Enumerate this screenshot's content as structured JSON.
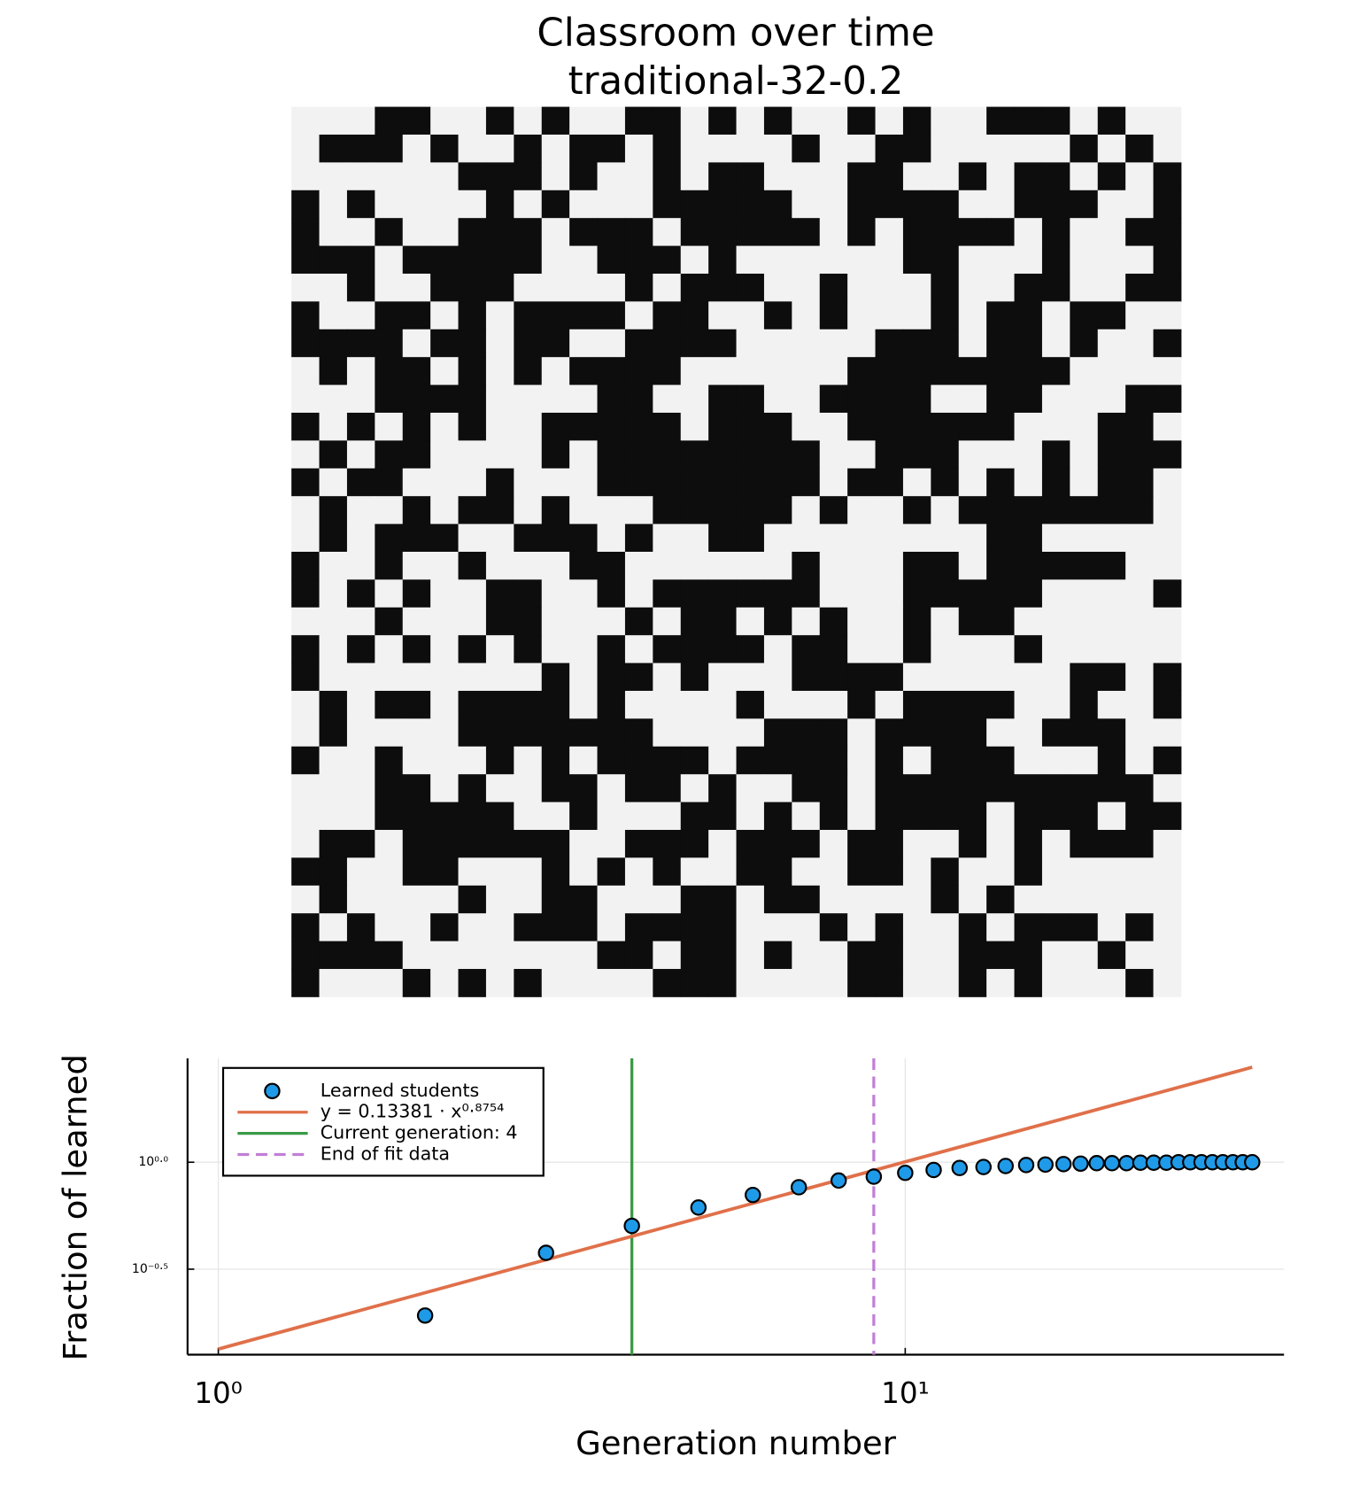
{
  "chart_data": [
    {
      "type": "heatmap",
      "title": "Classroom over time",
      "subtitle": "traditional-32-0.2",
      "colors": [
        "#f2f2f2",
        "#0d0d0d"
      ],
      "z": [
        [
          0,
          0,
          0,
          1,
          1,
          0,
          0,
          1,
          0,
          1,
          0,
          0,
          1,
          1,
          0,
          1,
          0,
          1,
          0,
          0,
          1,
          0,
          1,
          0,
          0,
          1,
          1,
          1,
          0,
          1,
          0,
          0
        ],
        [
          0,
          1,
          1,
          1,
          0,
          1,
          0,
          0,
          1,
          0,
          1,
          1,
          0,
          1,
          0,
          0,
          0,
          0,
          1,
          0,
          0,
          1,
          1,
          0,
          0,
          0,
          0,
          0,
          1,
          0,
          1,
          0
        ],
        [
          0,
          0,
          0,
          0,
          0,
          0,
          1,
          1,
          1,
          0,
          1,
          0,
          0,
          1,
          0,
          1,
          1,
          0,
          0,
          0,
          1,
          1,
          0,
          0,
          1,
          0,
          1,
          1,
          0,
          1,
          0,
          1
        ],
        [
          1,
          0,
          1,
          0,
          0,
          0,
          0,
          1,
          0,
          1,
          0,
          0,
          0,
          1,
          1,
          1,
          1,
          1,
          0,
          0,
          1,
          1,
          1,
          1,
          0,
          0,
          1,
          1,
          1,
          0,
          0,
          1
        ],
        [
          1,
          0,
          0,
          1,
          0,
          0,
          1,
          1,
          1,
          0,
          1,
          1,
          1,
          0,
          1,
          1,
          1,
          1,
          1,
          0,
          1,
          0,
          1,
          1,
          1,
          1,
          0,
          1,
          0,
          0,
          1,
          1
        ],
        [
          1,
          1,
          1,
          0,
          1,
          1,
          1,
          1,
          1,
          0,
          0,
          1,
          1,
          1,
          0,
          1,
          0,
          0,
          0,
          0,
          0,
          0,
          1,
          1,
          0,
          0,
          0,
          1,
          0,
          0,
          0,
          1
        ],
        [
          0,
          0,
          1,
          0,
          0,
          1,
          1,
          1,
          0,
          0,
          0,
          0,
          1,
          0,
          1,
          1,
          1,
          0,
          0,
          1,
          0,
          0,
          0,
          1,
          0,
          0,
          1,
          1,
          0,
          0,
          1,
          1
        ],
        [
          1,
          0,
          0,
          1,
          1,
          0,
          1,
          0,
          1,
          1,
          1,
          1,
          0,
          1,
          1,
          0,
          0,
          1,
          0,
          1,
          0,
          0,
          0,
          1,
          0,
          1,
          1,
          0,
          1,
          1,
          0,
          0
        ],
        [
          1,
          1,
          1,
          1,
          0,
          1,
          1,
          0,
          1,
          1,
          0,
          0,
          1,
          1,
          1,
          1,
          0,
          0,
          0,
          0,
          0,
          1,
          1,
          1,
          0,
          1,
          1,
          0,
          1,
          0,
          0,
          1
        ],
        [
          0,
          1,
          0,
          1,
          1,
          0,
          1,
          0,
          1,
          0,
          1,
          1,
          1,
          1,
          0,
          0,
          0,
          0,
          0,
          0,
          1,
          1,
          1,
          1,
          1,
          1,
          1,
          1,
          0,
          0,
          0,
          0
        ],
        [
          0,
          0,
          0,
          1,
          1,
          1,
          1,
          0,
          0,
          0,
          0,
          1,
          1,
          0,
          0,
          1,
          1,
          0,
          0,
          1,
          1,
          1,
          1,
          0,
          0,
          1,
          1,
          0,
          0,
          0,
          1,
          1
        ],
        [
          1,
          0,
          1,
          0,
          1,
          0,
          1,
          0,
          0,
          1,
          1,
          1,
          1,
          1,
          0,
          1,
          1,
          1,
          0,
          0,
          1,
          1,
          1,
          1,
          1,
          1,
          0,
          0,
          0,
          1,
          1,
          0
        ],
        [
          0,
          1,
          0,
          1,
          1,
          0,
          0,
          0,
          0,
          1,
          0,
          1,
          1,
          1,
          1,
          1,
          1,
          1,
          1,
          0,
          0,
          1,
          1,
          1,
          0,
          0,
          0,
          1,
          0,
          1,
          1,
          1
        ],
        [
          1,
          0,
          1,
          1,
          0,
          0,
          0,
          1,
          0,
          0,
          0,
          1,
          1,
          1,
          1,
          1,
          1,
          1,
          1,
          0,
          1,
          1,
          0,
          1,
          0,
          1,
          0,
          1,
          0,
          1,
          1,
          0
        ],
        [
          0,
          1,
          0,
          0,
          1,
          0,
          1,
          1,
          0,
          1,
          0,
          0,
          0,
          1,
          1,
          1,
          1,
          1,
          0,
          1,
          0,
          0,
          1,
          0,
          1,
          1,
          1,
          1,
          1,
          1,
          1,
          0
        ],
        [
          0,
          1,
          0,
          1,
          1,
          1,
          0,
          0,
          1,
          1,
          1,
          0,
          1,
          0,
          0,
          1,
          1,
          0,
          0,
          0,
          0,
          0,
          0,
          0,
          0,
          1,
          1,
          0,
          0,
          0,
          0,
          0
        ],
        [
          1,
          0,
          0,
          1,
          0,
          0,
          1,
          0,
          0,
          0,
          1,
          1,
          0,
          0,
          0,
          0,
          0,
          0,
          1,
          0,
          0,
          0,
          1,
          1,
          0,
          1,
          1,
          1,
          1,
          1,
          0,
          0
        ],
        [
          1,
          0,
          1,
          0,
          1,
          0,
          0,
          1,
          1,
          0,
          0,
          1,
          0,
          1,
          1,
          1,
          1,
          1,
          1,
          0,
          0,
          0,
          1,
          1,
          1,
          1,
          1,
          0,
          0,
          0,
          0,
          1
        ],
        [
          0,
          0,
          0,
          1,
          0,
          0,
          0,
          1,
          1,
          0,
          0,
          0,
          1,
          0,
          1,
          1,
          0,
          1,
          0,
          1,
          0,
          0,
          1,
          0,
          1,
          1,
          0,
          0,
          0,
          0,
          0,
          0
        ],
        [
          1,
          0,
          1,
          0,
          1,
          0,
          1,
          0,
          1,
          0,
          0,
          1,
          0,
          1,
          1,
          1,
          1,
          0,
          1,
          1,
          0,
          0,
          1,
          0,
          0,
          0,
          1,
          0,
          0,
          0,
          0,
          0
        ],
        [
          1,
          0,
          0,
          0,
          0,
          0,
          0,
          0,
          0,
          1,
          0,
          1,
          1,
          0,
          1,
          0,
          0,
          0,
          1,
          1,
          1,
          1,
          0,
          0,
          0,
          0,
          0,
          0,
          1,
          1,
          0,
          1
        ],
        [
          0,
          1,
          0,
          1,
          1,
          0,
          1,
          1,
          1,
          1,
          0,
          1,
          0,
          0,
          0,
          0,
          1,
          0,
          0,
          0,
          1,
          0,
          1,
          1,
          1,
          1,
          0,
          0,
          1,
          0,
          0,
          1
        ],
        [
          0,
          1,
          0,
          0,
          0,
          0,
          1,
          1,
          1,
          1,
          1,
          1,
          1,
          0,
          0,
          0,
          0,
          1,
          1,
          1,
          0,
          1,
          1,
          1,
          1,
          0,
          0,
          1,
          1,
          1,
          0,
          0
        ],
        [
          1,
          0,
          0,
          1,
          0,
          0,
          0,
          1,
          0,
          1,
          0,
          1,
          1,
          1,
          1,
          0,
          1,
          1,
          1,
          1,
          0,
          1,
          0,
          1,
          1,
          1,
          0,
          0,
          0,
          1,
          0,
          1
        ],
        [
          0,
          0,
          0,
          1,
          1,
          0,
          1,
          0,
          0,
          1,
          1,
          0,
          1,
          1,
          0,
          1,
          0,
          0,
          1,
          1,
          0,
          1,
          1,
          1,
          1,
          1,
          1,
          1,
          1,
          1,
          1,
          0
        ],
        [
          0,
          0,
          0,
          1,
          1,
          1,
          1,
          1,
          0,
          0,
          1,
          0,
          0,
          0,
          1,
          1,
          0,
          1,
          0,
          1,
          0,
          1,
          1,
          1,
          1,
          0,
          1,
          1,
          1,
          0,
          1,
          1
        ],
        [
          0,
          1,
          1,
          0,
          1,
          1,
          1,
          1,
          1,
          1,
          0,
          0,
          1,
          1,
          1,
          0,
          1,
          1,
          1,
          0,
          1,
          1,
          0,
          0,
          1,
          0,
          1,
          0,
          1,
          1,
          1,
          0
        ],
        [
          1,
          1,
          0,
          0,
          1,
          1,
          0,
          0,
          0,
          1,
          0,
          1,
          0,
          1,
          0,
          0,
          1,
          1,
          0,
          0,
          1,
          1,
          0,
          1,
          0,
          0,
          1,
          0,
          0,
          0,
          0,
          0
        ],
        [
          0,
          1,
          0,
          0,
          0,
          0,
          1,
          0,
          0,
          1,
          1,
          0,
          0,
          0,
          1,
          1,
          0,
          1,
          1,
          0,
          0,
          0,
          0,
          1,
          0,
          1,
          0,
          0,
          0,
          0,
          0,
          0
        ],
        [
          1,
          0,
          1,
          0,
          0,
          1,
          0,
          0,
          1,
          1,
          1,
          0,
          1,
          1,
          1,
          1,
          0,
          0,
          0,
          1,
          0,
          1,
          0,
          0,
          1,
          0,
          1,
          1,
          1,
          0,
          1,
          0
        ],
        [
          1,
          1,
          1,
          1,
          0,
          0,
          0,
          0,
          0,
          0,
          0,
          1,
          1,
          0,
          1,
          1,
          0,
          1,
          0,
          0,
          1,
          1,
          0,
          0,
          1,
          1,
          1,
          0,
          0,
          1,
          0,
          0
        ],
        [
          1,
          0,
          0,
          0,
          1,
          0,
          1,
          0,
          1,
          0,
          0,
          0,
          0,
          1,
          1,
          1,
          0,
          0,
          0,
          0,
          1,
          1,
          0,
          0,
          1,
          0,
          1,
          0,
          0,
          0,
          1,
          0
        ]
      ]
    },
    {
      "type": "scatter",
      "xlabel": "Generation number",
      "ylabel": "Fraction of learned",
      "xscale": "log",
      "yscale": "log",
      "xlim": [
        0.902,
        35.6
      ],
      "ylim": [
        0.126,
        3.06
      ],
      "xticks": [
        {
          "value": 1,
          "label": "10⁰"
        },
        {
          "value": 10,
          "label": "10¹"
        }
      ],
      "yticks": [
        {
          "value": 0.3162,
          "label": "10⁻⁰·⁵"
        },
        {
          "value": 1,
          "label": "10⁰·⁰"
        }
      ],
      "grid": true,
      "legend": "top-left",
      "series": [
        {
          "name": "Learned students",
          "type": "scatter",
          "color": "#1f9ae8",
          "x": [
            2,
            3,
            4,
            5,
            6,
            7,
            8,
            9,
            10,
            11,
            12,
            13,
            14,
            15,
            16,
            17,
            18,
            19,
            20,
            21,
            22,
            23,
            24,
            25,
            26,
            27,
            28,
            29,
            30,
            31,
            32
          ],
          "values": [
            0.192,
            0.377,
            0.504,
            0.614,
            0.703,
            0.764,
            0.821,
            0.856,
            0.892,
            0.92,
            0.94,
            0.95,
            0.96,
            0.97,
            0.975,
            0.98,
            0.985,
            0.99,
            0.99,
            0.99,
            0.995,
            0.995,
            0.995,
            1,
            1,
            1,
            1,
            1,
            1,
            1,
            1
          ]
        },
        {
          "name": "y = 0.13381 · x⁰·⁸⁷⁵⁴",
          "type": "line",
          "color": "#e0704a",
          "x": [
            1,
            32
          ],
          "values": [
            0.13381,
            2.78
          ]
        }
      ],
      "vlines": [
        {
          "name": "Current generation: 4",
          "x": 4,
          "color": "#3a9a45",
          "dash": false
        },
        {
          "name": "End of fit data",
          "x": 9,
          "color": "#c27fd6",
          "dash": true
        }
      ]
    }
  ]
}
